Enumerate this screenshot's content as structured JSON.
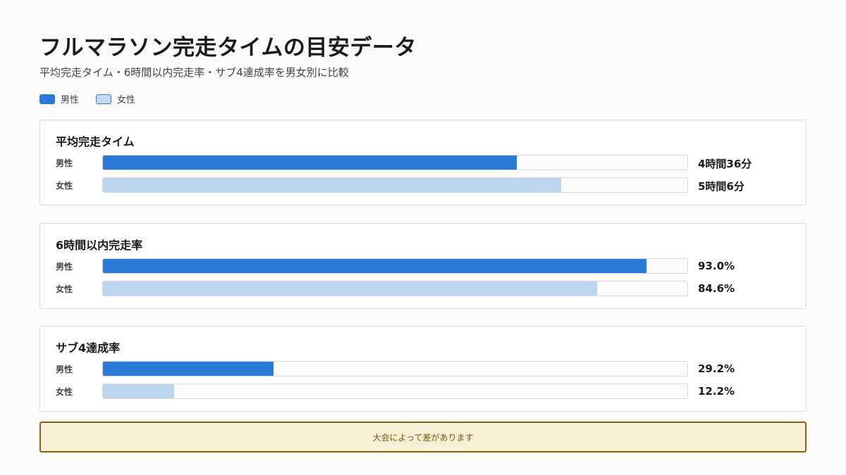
{
  "header": {
    "title": "フルマラソン完走タイムの目安データ",
    "subtitle": "平均完走タイム・6時間以内完走率・サブ4達成率を男女別に比較"
  },
  "legend": [
    {
      "label": "男性",
      "key": "male"
    },
    {
      "label": "女性",
      "key": "female"
    }
  ],
  "colors": {
    "male": "#2b7bd6",
    "female": "#bdd5f1"
  },
  "chart_data": {
    "type": "bar",
    "orientation": "horizontal",
    "legend_position": "top-left",
    "panels": [
      {
        "title": "平均完走タイム",
        "unit": "minutes",
        "max": 390,
        "rows": [
          {
            "label": "男性",
            "series": "male",
            "value": 276,
            "display": "4時間36分"
          },
          {
            "label": "女性",
            "series": "female",
            "value": 306,
            "display": "5時間6分"
          }
        ]
      },
      {
        "title": "6時間以内完走率",
        "unit": "percent",
        "max": 100,
        "rows": [
          {
            "label": "男性",
            "series": "male",
            "value": 93.0,
            "display": "93.0%"
          },
          {
            "label": "女性",
            "series": "female",
            "value": 84.6,
            "display": "84.6%"
          }
        ]
      },
      {
        "title": "サブ4達成率",
        "unit": "percent",
        "max": 100,
        "rows": [
          {
            "label": "男性",
            "series": "male",
            "value": 29.2,
            "display": "29.2%"
          },
          {
            "label": "女性",
            "series": "female",
            "value": 12.2,
            "display": "12.2%"
          }
        ]
      }
    ]
  },
  "note": "大会によって差があります"
}
